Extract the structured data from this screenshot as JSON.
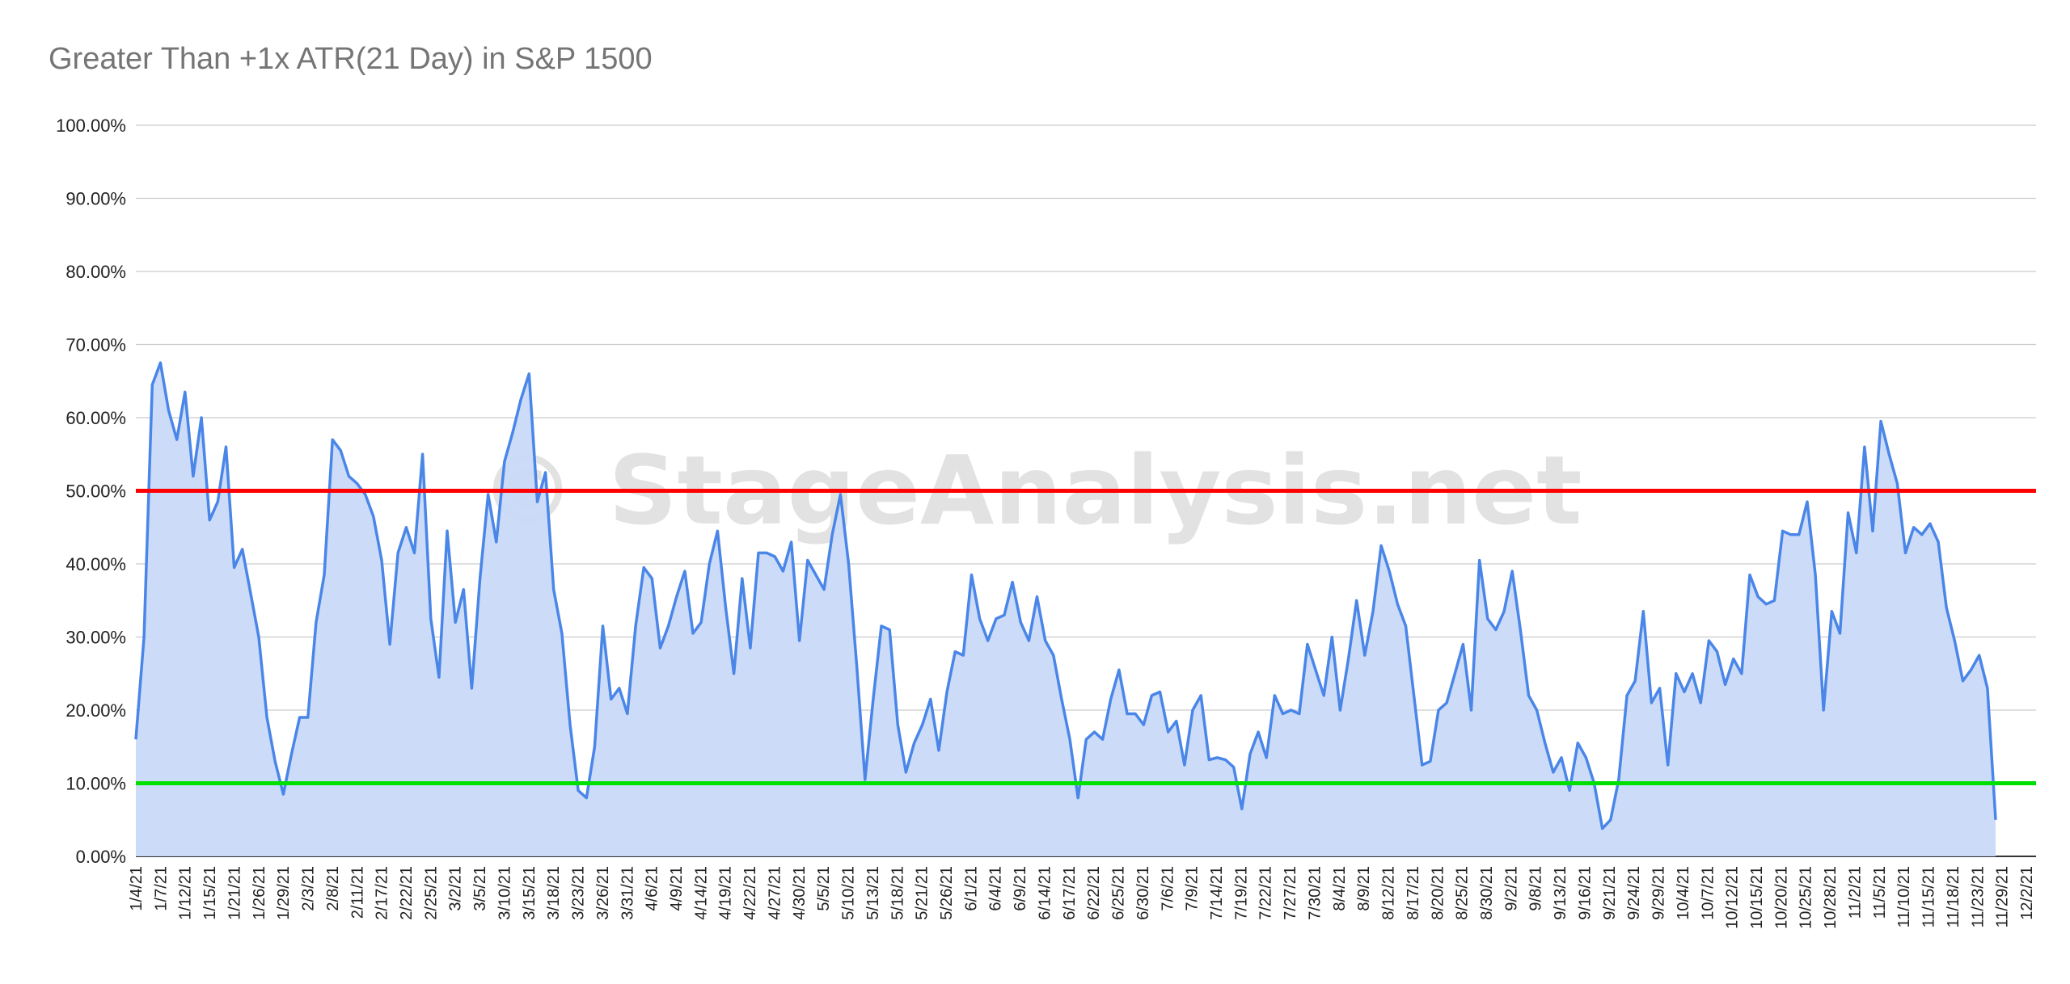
{
  "watermark": "© StageAnalysis.net",
  "chart_data": {
    "type": "area",
    "title": "Greater Than +1x ATR(21 Day) in S&P 1500",
    "xlabel": "",
    "ylabel": "",
    "ylim": [
      0,
      100
    ],
    "y_ticks": [
      "0.00%",
      "10.00%",
      "20.00%",
      "30.00%",
      "40.00%",
      "50.00%",
      "60.00%",
      "70.00%",
      "80.00%",
      "90.00%",
      "100.00%"
    ],
    "x_ticks": [
      "1/4/21",
      "1/7/21",
      "1/12/21",
      "1/15/21",
      "1/21/21",
      "1/26/21",
      "1/29/21",
      "2/3/21",
      "2/8/21",
      "2/11/21",
      "2/17/21",
      "2/22/21",
      "2/25/21",
      "3/2/21",
      "3/5/21",
      "3/10/21",
      "3/15/21",
      "3/18/21",
      "3/23/21",
      "3/26/21",
      "3/31/21",
      "4/6/21",
      "4/9/21",
      "4/14/21",
      "4/19/21",
      "4/22/21",
      "4/27/21",
      "4/30/21",
      "5/5/21",
      "5/10/21",
      "5/13/21",
      "5/18/21",
      "5/21/21",
      "5/26/21",
      "6/1/21",
      "6/4/21",
      "6/9/21",
      "6/14/21",
      "6/17/21",
      "6/22/21",
      "6/25/21",
      "6/30/21",
      "7/6/21",
      "7/9/21",
      "7/14/21",
      "7/19/21",
      "7/22/21",
      "7/27/21",
      "7/30/21",
      "8/4/21",
      "8/9/21",
      "8/12/21",
      "8/17/21",
      "8/20/21",
      "8/25/21",
      "8/30/21",
      "9/2/21",
      "9/8/21",
      "9/13/21",
      "9/16/21",
      "9/21/21",
      "9/24/21",
      "9/29/21",
      "10/4/21",
      "10/7/21",
      "10/12/21",
      "10/15/21",
      "10/20/21",
      "10/25/21",
      "10/28/21",
      "11/2/21",
      "11/5/21",
      "11/10/21",
      "11/15/21",
      "11/18/21",
      "11/23/21",
      "11/29/21",
      "12/2/21"
    ],
    "grid": true,
    "legend": "none",
    "colors": {
      "line": "#4a86e8",
      "fill": "#c9daf8",
      "upper_threshold": "#ff0000",
      "lower_threshold": "#00e000",
      "grid": "#cccccc"
    },
    "thresholds": [
      50,
      10
    ],
    "series": [
      {
        "values": [
          16,
          30,
          64.5,
          67.5,
          61,
          57,
          63.5,
          52,
          60,
          46,
          48.5,
          56,
          39.5,
          42,
          36,
          30,
          19,
          13,
          8.5,
          14,
          19,
          19,
          32,
          38.5,
          57,
          55.5,
          52,
          51,
          49.5,
          46.5,
          40.5,
          29,
          41.5,
          45,
          41.5,
          55,
          32.5,
          24.5,
          44.5,
          32,
          36.5,
          23,
          38,
          49.5,
          43,
          54,
          58,
          62.5,
          66,
          48.5,
          52.5,
          36.5,
          30.5,
          18,
          9,
          8,
          15,
          31.5,
          21.5,
          23,
          19.5,
          31.5,
          39.5,
          38,
          28.5,
          31.5,
          35.5,
          39,
          30.5,
          32,
          40,
          44.5,
          34,
          25,
          38,
          28.5,
          41.5,
          41.5,
          41,
          39,
          43,
          29.5,
          40.5,
          38.5,
          36.5,
          44,
          49.5,
          40,
          26,
          10.5,
          21.5,
          31.5,
          31,
          18,
          11.5,
          15.5,
          18,
          21.5,
          14.5,
          22.5,
          28,
          27.5,
          38.5,
          32.5,
          29.5,
          32.5,
          33,
          37.5,
          32,
          29.5,
          35.5,
          29.5,
          27.5,
          21.5,
          16,
          8,
          16,
          17,
          16,
          21.5,
          25.5,
          19.5,
          19.5,
          18,
          22,
          22.5,
          17,
          18.5,
          12.5,
          20,
          22,
          13.2,
          13.5,
          13.2,
          12.2,
          6.5,
          14,
          17,
          13.5,
          22,
          19.5,
          20,
          19.5,
          29,
          25.5,
          22,
          30,
          20,
          27,
          35,
          27.5,
          33.5,
          42.5,
          39,
          34.5,
          31.5,
          22,
          12.5,
          13,
          20,
          21,
          25,
          29,
          20,
          40.5,
          32.5,
          31,
          33.5,
          39,
          31,
          22,
          20,
          15.5,
          11.5,
          13.5,
          9,
          15.5,
          13.5,
          10,
          3.8,
          5,
          10.5,
          22,
          24,
          33.5,
          21,
          23,
          12.5,
          25,
          22.5,
          25,
          21,
          29.5,
          28,
          23.5,
          27,
          25,
          38.5,
          35.5,
          34.5,
          35,
          44.5,
          44,
          44,
          48.5,
          38.5,
          20,
          33.5,
          30.5,
          47,
          41.5,
          56,
          44.5,
          59.5,
          55,
          51,
          41.5,
          45,
          44,
          45.5,
          43,
          34,
          29.5,
          24,
          25.5,
          27.5,
          23,
          5
        ]
      }
    ]
  }
}
